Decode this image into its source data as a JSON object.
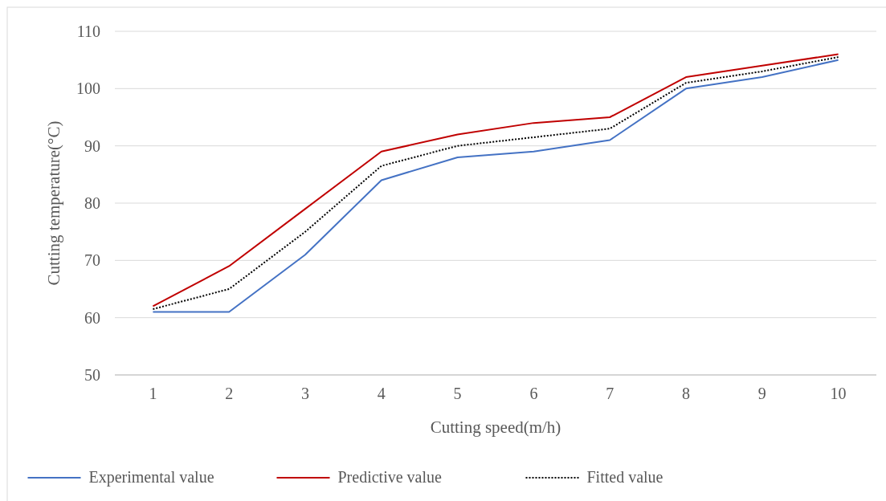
{
  "chart_data": {
    "type": "line",
    "xlabel": "Cutting speed(m/h)",
    "ylabel": "Cutting temperature(°C)",
    "categories": [
      "1",
      "2",
      "3",
      "4",
      "5",
      "6",
      "7",
      "8",
      "9",
      "10"
    ],
    "ylim": [
      50,
      110
    ],
    "yticks": [
      50,
      60,
      70,
      80,
      90,
      100,
      110
    ],
    "grid": "y",
    "legend": "bottom",
    "marker": "none",
    "series": [
      {
        "name": "Experimental value",
        "color": "#4472c4",
        "line_style": "solid",
        "values": [
          61,
          61,
          71,
          84,
          88,
          89,
          91,
          100,
          102,
          105
        ]
      },
      {
        "name": "Predictive value",
        "color": "#c00000",
        "line_style": "solid",
        "values": [
          62,
          69,
          79,
          89,
          92,
          94,
          95,
          102,
          104,
          106
        ]
      },
      {
        "name": "Fitted value",
        "color": "#000000",
        "line_style": "dotted",
        "values": [
          61.5,
          65,
          75,
          86.5,
          90,
          91.5,
          93,
          101,
          103,
          105.5
        ]
      }
    ]
  }
}
